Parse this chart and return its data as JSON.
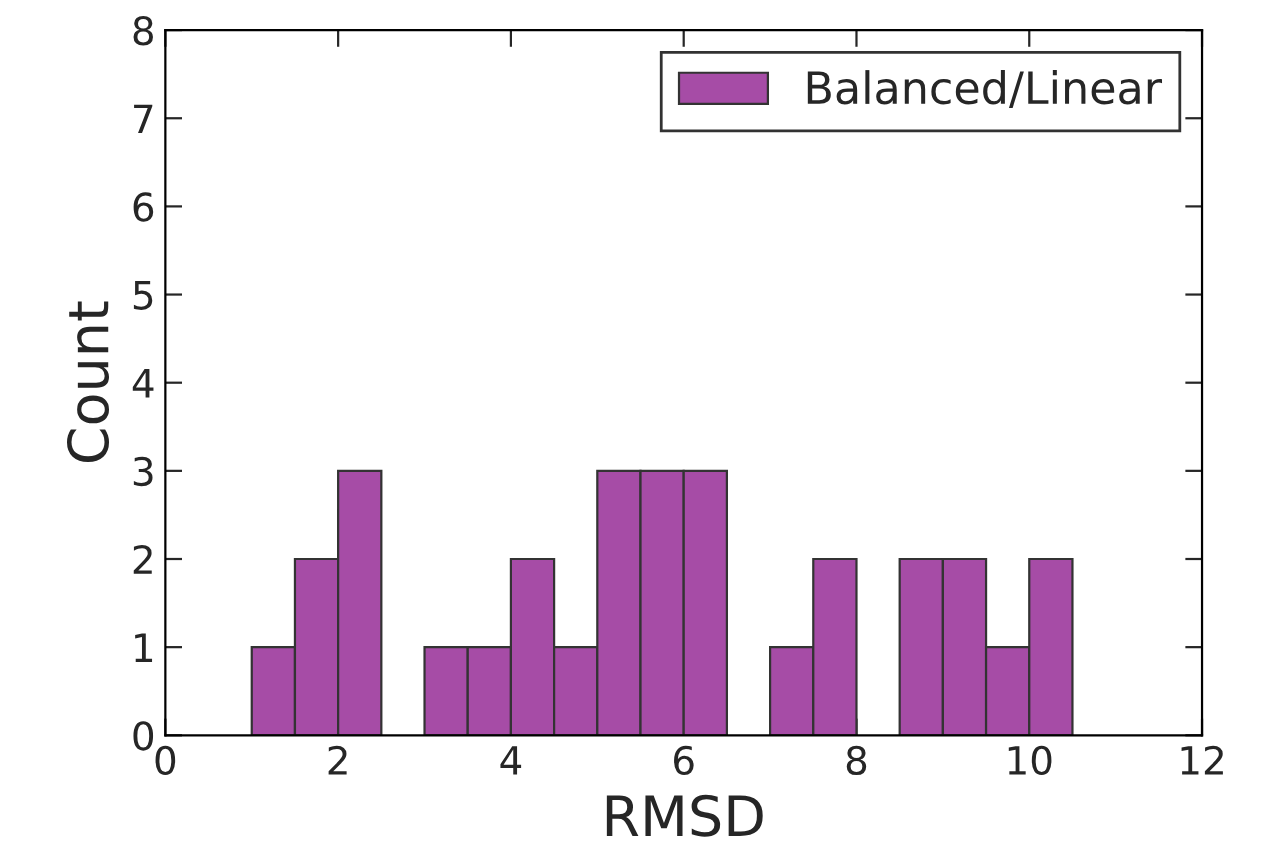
{
  "chart_data": {
    "type": "histogram",
    "xlabel": "RMSD",
    "ylabel": "Count",
    "bins": [
      1,
      1.5,
      2,
      2.5,
      3,
      3.5,
      4,
      4.5,
      5,
      5.5,
      6,
      6.5,
      7,
      7.5,
      8,
      8.5,
      9,
      9.5,
      10,
      10.5
    ],
    "series": [
      {
        "name": "Balanced/Linear",
        "color": "#a64ca6",
        "values": [
          1,
          2,
          3,
          0,
          1,
          1,
          2,
          1,
          3,
          3,
          3,
          0,
          1,
          2,
          0,
          2,
          2,
          1,
          2
        ]
      }
    ],
    "xlim": [
      0,
      12
    ],
    "xticks": [
      0,
      2,
      4,
      6,
      8,
      10,
      12
    ],
    "ylim": [
      0,
      8
    ],
    "yticks": [
      0,
      1,
      2,
      3,
      4,
      5,
      6,
      7,
      8
    ],
    "grid": false,
    "legend": "top right"
  }
}
